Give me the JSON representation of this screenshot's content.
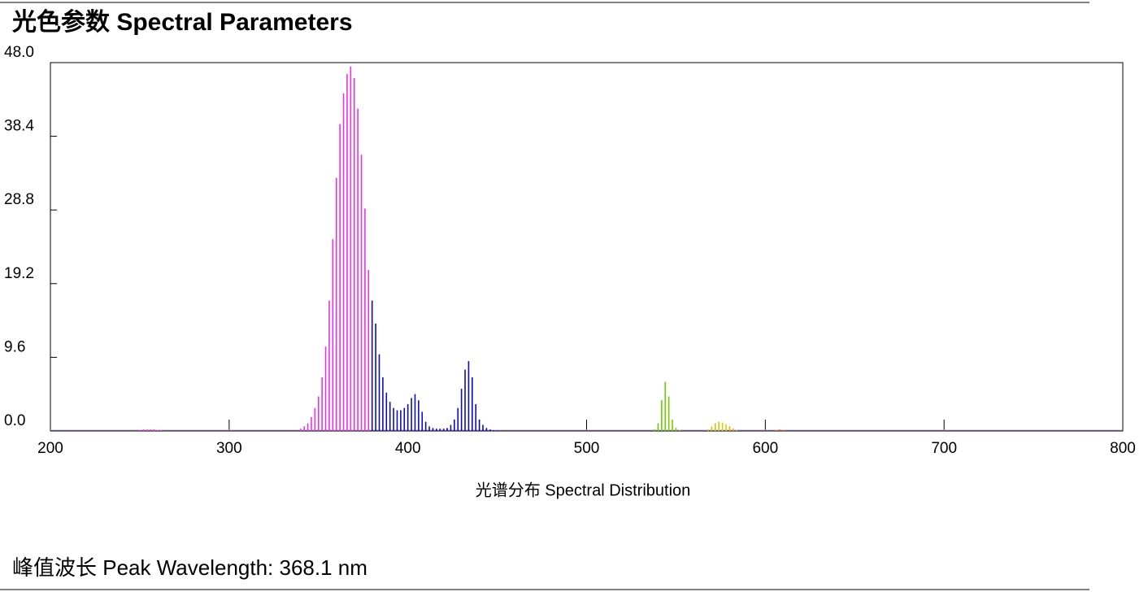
{
  "header": {
    "title": "光色参数 Spectral Parameters"
  },
  "chart_data": {
    "type": "spectrum",
    "x_label": "光谱分布 Spectral Distribution",
    "x": [
      250,
      252,
      254,
      256,
      258,
      260,
      262,
      340,
      342,
      344,
      346,
      348,
      350,
      352,
      354,
      356,
      358,
      360,
      362,
      364,
      366,
      368,
      370,
      372,
      374,
      376,
      378,
      380,
      382,
      384,
      386,
      388,
      390,
      392,
      394,
      396,
      398,
      400,
      402,
      404,
      406,
      408,
      410,
      412,
      414,
      416,
      418,
      420,
      422,
      424,
      426,
      428,
      430,
      432,
      434,
      436,
      438,
      440,
      442,
      444,
      446,
      448,
      450,
      538,
      540,
      542,
      544,
      546,
      548,
      550,
      552,
      568,
      570,
      572,
      574,
      576,
      578,
      580,
      582,
      584,
      606,
      608,
      610
    ],
    "values": [
      0.1,
      0.2,
      0.2,
      0.2,
      0.2,
      0.1,
      0.1,
      0.3,
      0.6,
      1,
      1.8,
      3,
      4.5,
      7,
      11,
      17,
      25,
      33,
      40,
      44,
      46.5,
      47.5,
      46,
      42,
      36,
      29,
      21,
      17,
      14,
      10,
      7,
      5,
      3.8,
      3,
      2.7,
      2.7,
      3,
      3.5,
      4.3,
      4.8,
      4,
      2.5,
      1.2,
      0.6,
      0.4,
      0.3,
      0.3,
      0.3,
      0.4,
      0.8,
      1.5,
      3,
      5.5,
      8,
      9.1,
      7,
      3.5,
      1.5,
      0.8,
      0.4,
      0.2,
      0.1,
      0.1,
      0.2,
      1,
      4,
      6.4,
      4.5,
      1.5,
      0.4,
      0.1,
      0.2,
      0.6,
      1,
      1.2,
      1.1,
      0.9,
      0.6,
      0.3,
      0.1,
      0.1,
      0.2,
      0.1
    ],
    "xlim": [
      200,
      800
    ],
    "xticks": [
      200,
      300,
      400,
      500,
      600,
      700,
      800
    ],
    "ylim": [
      0,
      48
    ],
    "yticks": [
      {
        "value": 0,
        "label": "0.0"
      },
      9.6,
      19.2,
      28.8,
      38.4,
      {
        "value": 48,
        "label": "48.0"
      }
    ]
  },
  "footer": {
    "peak": "峰值波长 Peak Wavelength: 368.1 nm"
  }
}
